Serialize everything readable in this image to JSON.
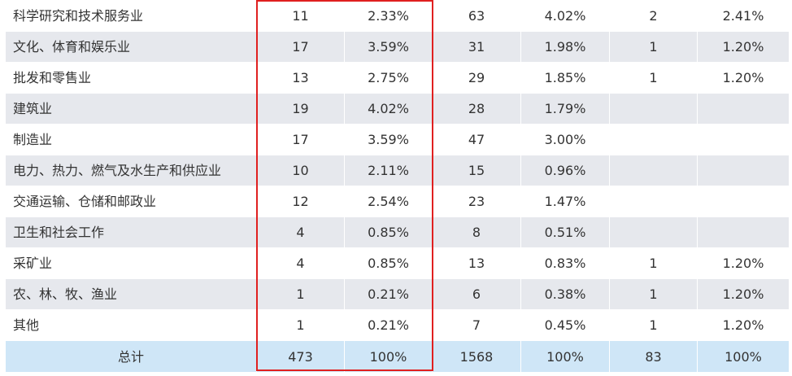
{
  "rows": [
    {
      "industry": "科学研究和技术服务业",
      "c1": "11",
      "c2": "2.33%",
      "c3": "63",
      "c4": "4.02%",
      "c5": "2",
      "c6": "2.41%"
    },
    {
      "industry": "文化、体育和娱乐业",
      "c1": "17",
      "c2": "3.59%",
      "c3": "31",
      "c4": "1.98%",
      "c5": "1",
      "c6": "1.20%"
    },
    {
      "industry": "批发和零售业",
      "c1": "13",
      "c2": "2.75%",
      "c3": "29",
      "c4": "1.85%",
      "c5": "1",
      "c6": "1.20%"
    },
    {
      "industry": "建筑业",
      "c1": "19",
      "c2": "4.02%",
      "c3": "28",
      "c4": "1.79%",
      "c5": "",
      "c6": ""
    },
    {
      "industry": "制造业",
      "c1": "17",
      "c2": "3.59%",
      "c3": "47",
      "c4": "3.00%",
      "c5": "",
      "c6": ""
    },
    {
      "industry": "电力、热力、燃气及水生产和供应业",
      "c1": "10",
      "c2": "2.11%",
      "c3": "15",
      "c4": "0.96%",
      "c5": "",
      "c6": ""
    },
    {
      "industry": "交通运输、仓储和邮政业",
      "c1": "12",
      "c2": "2.54%",
      "c3": "23",
      "c4": "1.47%",
      "c5": "",
      "c6": ""
    },
    {
      "industry": "卫生和社会工作",
      "c1": "4",
      "c2": "0.85%",
      "c3": "8",
      "c4": "0.51%",
      "c5": "",
      "c6": ""
    },
    {
      "industry": "采矿业",
      "c1": "4",
      "c2": "0.85%",
      "c3": "13",
      "c4": "0.83%",
      "c5": "1",
      "c6": "1.20%"
    },
    {
      "industry": "农、林、牧、渔业",
      "c1": "1",
      "c2": "0.21%",
      "c3": "6",
      "c4": "0.38%",
      "c5": "1",
      "c6": "1.20%"
    },
    {
      "industry": "其他",
      "c1": "1",
      "c2": "0.21%",
      "c3": "7",
      "c4": "0.45%",
      "c5": "1",
      "c6": "1.20%"
    }
  ],
  "total": {
    "label": "总计",
    "c1": "473",
    "c2": "100%",
    "c3": "1568",
    "c4": "100%",
    "c5": "83",
    "c6": "100%"
  },
  "colors": {
    "row_alt": "#e6e8ed",
    "total_bg": "#cfe6f7",
    "highlight": "#e02020",
    "text": "#333333"
  }
}
